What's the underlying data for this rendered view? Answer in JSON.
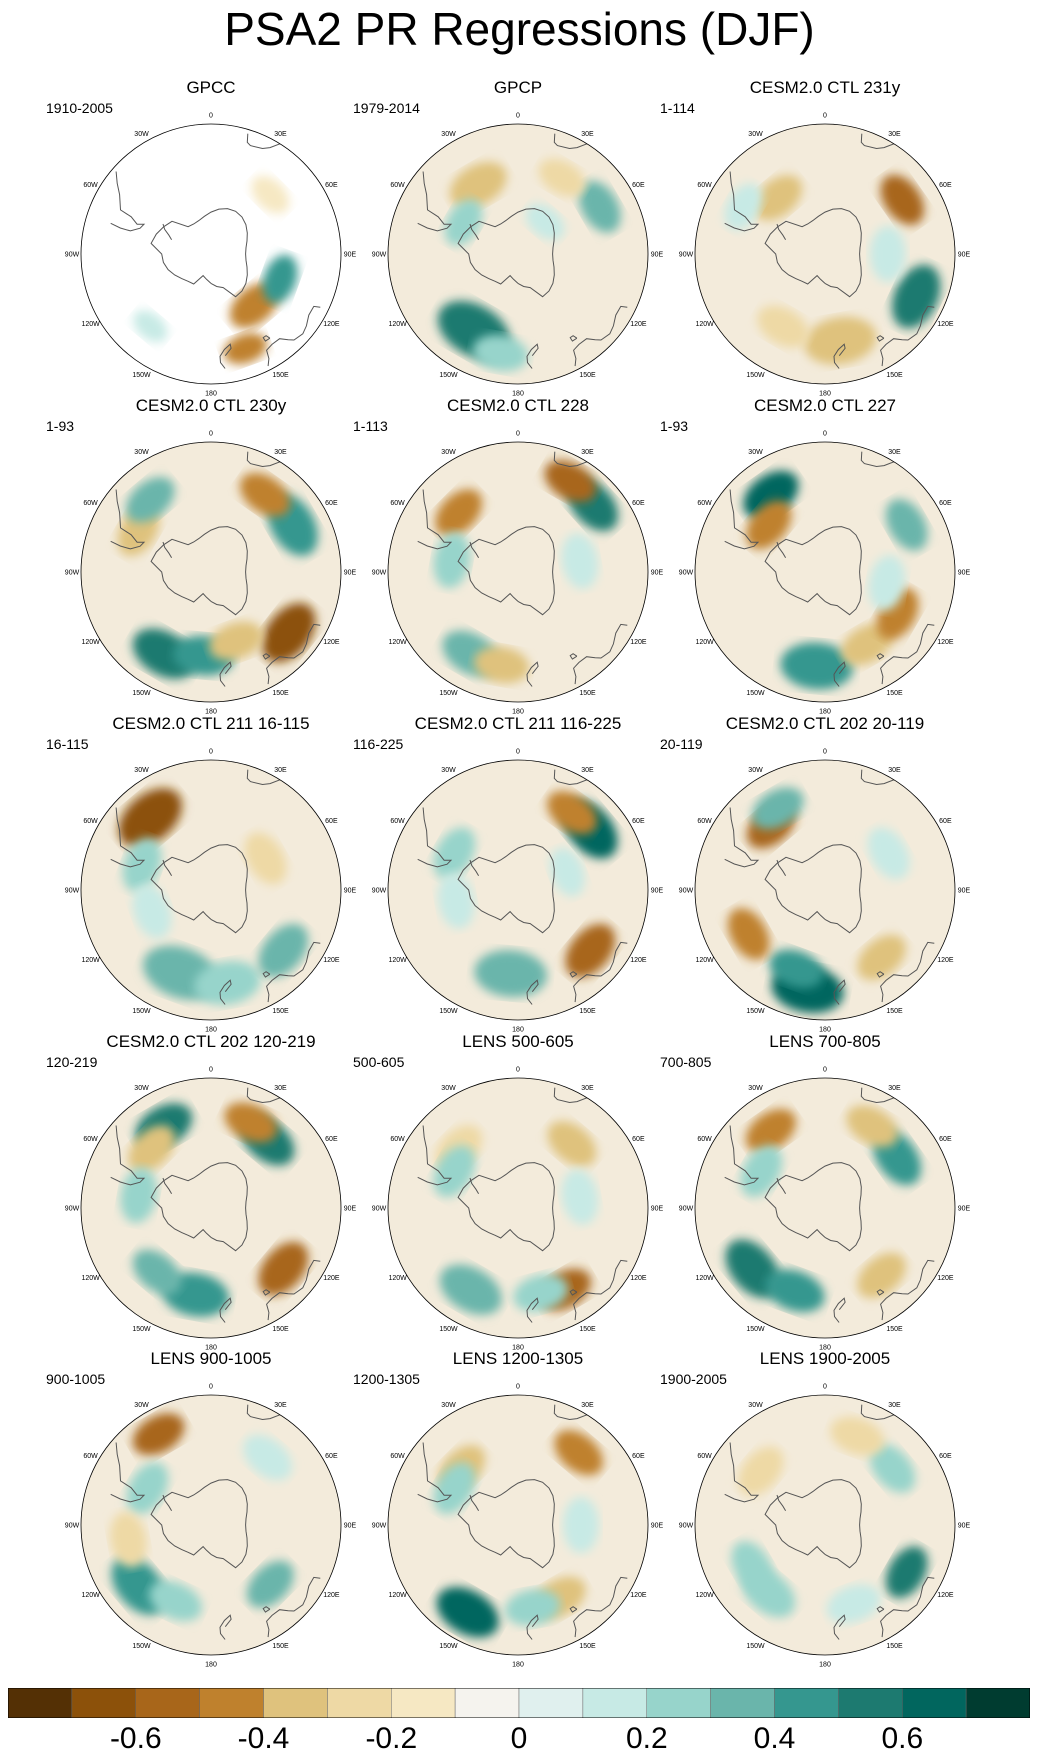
{
  "title": "PSA2 PR Regressions (DJF)",
  "colors": {
    "coast": "#555555",
    "ocean_base": "#f3ebdb",
    "palette": [
      "#543005",
      "#8c510a",
      "#a8661a",
      "#bf812d",
      "#dfc27d",
      "#eed9a5",
      "#f6e8c3",
      "#f5f3ee",
      "#e0f0ee",
      "#c7eae5",
      "#97d4cb",
      "#6ab5ab",
      "#35978f",
      "#1d7a70",
      "#01665e",
      "#003c30"
    ]
  },
  "panels": [
    {
      "title": "GPCC",
      "subtitle": "1910-2005"
    },
    {
      "title": "GPCP",
      "subtitle": "1979-2014"
    },
    {
      "title": "CESM2.0 CTL 231y",
      "subtitle": "1-114"
    },
    {
      "title": "CESM2.0 CTL 230y",
      "subtitle": "1-93"
    },
    {
      "title": "CESM2.0 CTL 228",
      "subtitle": "1-113"
    },
    {
      "title": "CESM2.0 CTL 227",
      "subtitle": "1-93"
    },
    {
      "title": "CESM2.0 CTL 211 16-115",
      "subtitle": "16-115"
    },
    {
      "title": "CESM2.0 CTL 211 116-225",
      "subtitle": "116-225"
    },
    {
      "title": "CESM2.0 CTL 202 20-119",
      "subtitle": "20-119"
    },
    {
      "title": "CESM2.0 CTL 202 120-219",
      "subtitle": "120-219"
    },
    {
      "title": "LENS 500-605",
      "subtitle": "500-605"
    },
    {
      "title": "LENS 700-805",
      "subtitle": "700-805"
    },
    {
      "title": "LENS 900-1005",
      "subtitle": "900-1005"
    },
    {
      "title": "LENS 1200-1305",
      "subtitle": "1200-1305"
    },
    {
      "title": "LENS 1900-2005",
      "subtitle": "1900-2005"
    }
  ],
  "lon_labels": [
    "0",
    "30E",
    "60E",
    "90E",
    "120E",
    "150E",
    "180",
    "150W",
    "120W",
    "90W",
    "60W",
    "30W"
  ],
  "chart_data": {
    "type": "heatmap",
    "title": "PSA2 PR Regressions (DJF)",
    "projection": "south polar stereographic",
    "colorbar": {
      "levels": [
        -0.7,
        -0.6,
        -0.5,
        -0.4,
        -0.3,
        -0.2,
        -0.1,
        0,
        0.1,
        0.2,
        0.3,
        0.4,
        0.5,
        0.6,
        0.7
      ],
      "tick_values": [
        -0.6,
        -0.4,
        -0.2,
        0,
        0.2,
        0.4,
        0.6
      ],
      "tick_labels": [
        "-0.6",
        "-0.4",
        "-0.2",
        "0",
        "0.2",
        "0.4",
        "0.6"
      ]
    },
    "features": [
      {
        "blobs": [
          [
            -58,
            140,
            1,
            -0.45
          ],
          [
            -55,
            110,
            0.9,
            0.5
          ],
          [
            -50,
            45,
            0.8,
            -0.1
          ],
          [
            -45,
            -140,
            0.7,
            0.2
          ],
          [
            -42,
            160,
            0.8,
            -0.4
          ]
        ],
        "land_only": true
      },
      {
        "blobs": [
          [
            -48,
            -150,
            1.4,
            0.55
          ],
          [
            -52,
            -30,
            1.1,
            -0.3
          ],
          [
            -45,
            60,
            1,
            0.35
          ],
          [
            -42,
            -170,
            1,
            0.3
          ],
          [
            -60,
            -60,
            0.9,
            0.25
          ],
          [
            -48,
            30,
            0.9,
            -0.2
          ],
          [
            -70,
            40,
            0.8,
            0.15
          ]
        ]
      },
      {
        "blobs": [
          [
            -45,
            55,
            1,
            -0.55
          ],
          [
            -42,
            115,
            1.2,
            0.6
          ],
          [
            -48,
            170,
            1.3,
            -0.35
          ],
          [
            -50,
            -150,
            1,
            -0.25
          ],
          [
            -55,
            -40,
            1,
            -0.3
          ],
          [
            -60,
            90,
            1,
            0.15
          ],
          [
            -45,
            -60,
            0.9,
            0.2
          ]
        ]
      },
      {
        "blobs": [
          [
            -45,
            -150,
            1.2,
            0.55
          ],
          [
            -50,
            -175,
            1.1,
            0.45
          ],
          [
            -43,
            128,
            1.2,
            -0.6
          ],
          [
            -50,
            -60,
            1,
            -0.3
          ],
          [
            -45,
            -40,
            1,
            0.35
          ],
          [
            -45,
            60,
            1.2,
            0.5
          ],
          [
            -45,
            35,
            1,
            -0.45
          ],
          [
            -55,
            160,
            1,
            -0.35
          ]
        ]
      },
      {
        "blobs": [
          [
            -42,
            48,
            1.1,
            0.6
          ],
          [
            -40,
            30,
            1,
            -0.5
          ],
          [
            -50,
            -45,
            1,
            -0.4
          ],
          [
            -45,
            -150,
            1.1,
            0.35
          ],
          [
            -45,
            -170,
            1,
            -0.3
          ],
          [
            -60,
            80,
            1,
            0.2
          ],
          [
            -58,
            -80,
            1,
            0.25
          ]
        ]
      },
      {
        "blobs": [
          [
            -45,
            -35,
            1.1,
            0.65
          ],
          [
            -55,
            -50,
            1,
            -0.4
          ],
          [
            -45,
            -175,
            1.3,
            0.5
          ],
          [
            -50,
            150,
            1,
            -0.35
          ],
          [
            -50,
            120,
            1,
            -0.4
          ],
          [
            -45,
            60,
            1,
            0.35
          ],
          [
            -60,
            100,
            1,
            0.15
          ]
        ]
      },
      {
        "blobs": [
          [
            -45,
            -40,
            1.3,
            -0.6
          ],
          [
            -48,
            -160,
            1.4,
            0.4
          ],
          [
            -45,
            170,
            1.2,
            0.3
          ],
          [
            -45,
            130,
            1.1,
            0.35
          ],
          [
            -55,
            -70,
            1,
            0.3
          ],
          [
            -60,
            60,
            1,
            -0.2
          ],
          [
            -60,
            -110,
            1,
            0.15
          ]
        ]
      },
      {
        "blobs": [
          [
            -45,
            50,
            1.2,
            0.65
          ],
          [
            -45,
            35,
            1,
            -0.45
          ],
          [
            -45,
            130,
            1.1,
            -0.55
          ],
          [
            -50,
            -175,
            1.3,
            0.35
          ],
          [
            -55,
            -60,
            1,
            0.3
          ],
          [
            -60,
            -100,
            1,
            0.2
          ],
          [
            -65,
            70,
            0.9,
            0.15
          ]
        ]
      },
      {
        "blobs": [
          [
            -42,
            -170,
            1.3,
            0.7
          ],
          [
            -50,
            -160,
            1,
            0.45
          ],
          [
            -50,
            -40,
            1,
            -0.5
          ],
          [
            -48,
            -120,
            1,
            -0.4
          ],
          [
            -48,
            140,
            1,
            -0.35
          ],
          [
            -45,
            -30,
            1,
            0.4
          ],
          [
            -55,
            60,
            1,
            0.2
          ]
        ]
      },
      {
        "blobs": [
          [
            -45,
            -30,
            1.1,
            0.6
          ],
          [
            -50,
            -45,
            1,
            -0.35
          ],
          [
            -48,
            40,
            1.1,
            0.55
          ],
          [
            -45,
            25,
            1,
            -0.45
          ],
          [
            -45,
            130,
            1.1,
            -0.5
          ],
          [
            -48,
            -170,
            1.2,
            0.45
          ],
          [
            -50,
            -140,
            1,
            0.4
          ],
          [
            -55,
            -80,
            1,
            0.25
          ]
        ]
      },
      {
        "blobs": [
          [
            -45,
            150,
            1,
            -0.5
          ],
          [
            -45,
            -150,
            1.2,
            0.4
          ],
          [
            -50,
            -45,
            1,
            -0.25
          ],
          [
            -50,
            40,
            1,
            -0.3
          ],
          [
            -55,
            -60,
            1,
            0.25
          ],
          [
            -60,
            80,
            1,
            0.15
          ],
          [
            -48,
            165,
            1,
            0.3
          ]
        ]
      },
      {
        "blobs": [
          [
            -45,
            -130,
            1.2,
            0.55
          ],
          [
            -48,
            -160,
            1.1,
            0.45
          ],
          [
            -45,
            -35,
            1,
            -0.4
          ],
          [
            -48,
            55,
            1.1,
            0.45
          ],
          [
            -45,
            30,
            1,
            -0.35
          ],
          [
            -48,
            140,
            1,
            -0.35
          ],
          [
            -55,
            -60,
            1,
            0.25
          ]
        ]
      },
      {
        "blobs": [
          [
            -45,
            -130,
            1.2,
            0.5
          ],
          [
            -40,
            -30,
            1,
            -0.5
          ],
          [
            -50,
            135,
            1,
            0.35
          ],
          [
            -50,
            -155,
            1,
            0.3
          ],
          [
            -55,
            -60,
            1,
            0.25
          ],
          [
            -48,
            40,
            1,
            0.2
          ],
          [
            -50,
            -100,
            1,
            -0.2
          ]
        ]
      },
      {
        "blobs": [
          [
            -42,
            -150,
            1.2,
            0.65
          ],
          [
            -45,
            40,
            1,
            -0.4
          ],
          [
            -52,
            -45,
            1,
            -0.35
          ],
          [
            -55,
            -60,
            1,
            0.3
          ],
          [
            -50,
            150,
            1,
            -0.3
          ],
          [
            -50,
            170,
            1,
            0.25
          ],
          [
            -60,
            90,
            1,
            0.15
          ]
        ]
      },
      {
        "blobs": [
          [
            -45,
            120,
            1,
            0.55
          ],
          [
            -48,
            50,
            1,
            0.3
          ],
          [
            -48,
            -140,
            1.1,
            0.3
          ],
          [
            -50,
            -120,
            1,
            0.25
          ],
          [
            -50,
            -50,
            1,
            -0.2
          ],
          [
            -50,
            160,
            1,
            0.2
          ],
          [
            -45,
            20,
            1,
            -0.2
          ]
        ]
      }
    ]
  }
}
